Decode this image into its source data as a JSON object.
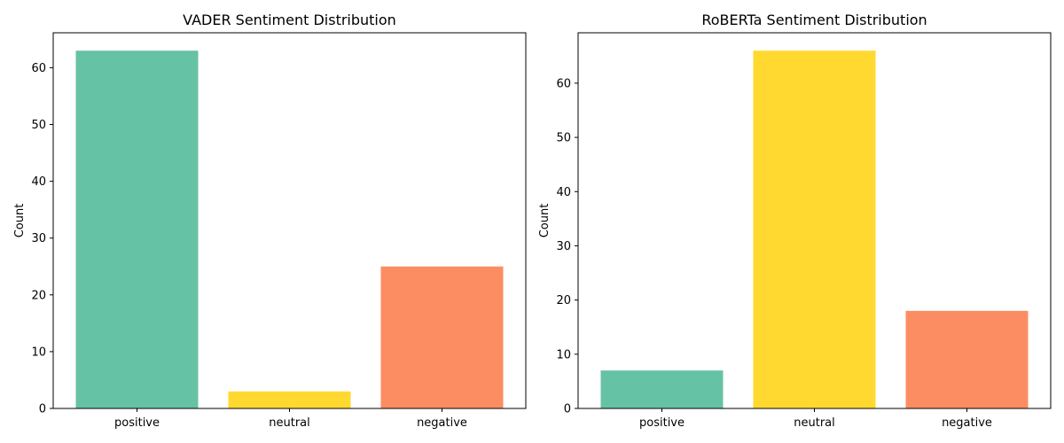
{
  "chart_data": [
    {
      "type": "bar",
      "title": "VADER Sentiment Distribution",
      "xlabel": "",
      "ylabel": "Count",
      "categories": [
        "positive",
        "neutral",
        "negative"
      ],
      "values": [
        63,
        3,
        25
      ],
      "colors": [
        "#66c2a5",
        "#ffd92f",
        "#fc8d62"
      ],
      "ylim": [
        0,
        66.15
      ],
      "yticks": [
        0,
        10,
        20,
        30,
        40,
        50,
        60
      ],
      "grid": false,
      "legend": "none"
    },
    {
      "type": "bar",
      "title": "RoBERTa Sentiment Distribution",
      "xlabel": "",
      "ylabel": "Count",
      "categories": [
        "positive",
        "neutral",
        "negative"
      ],
      "values": [
        7,
        66,
        18
      ],
      "colors": [
        "#66c2a5",
        "#ffd92f",
        "#fc8d62"
      ],
      "ylim": [
        0,
        69.3
      ],
      "yticks": [
        0,
        10,
        20,
        30,
        40,
        50,
        60
      ],
      "grid": false,
      "legend": "none"
    }
  ]
}
